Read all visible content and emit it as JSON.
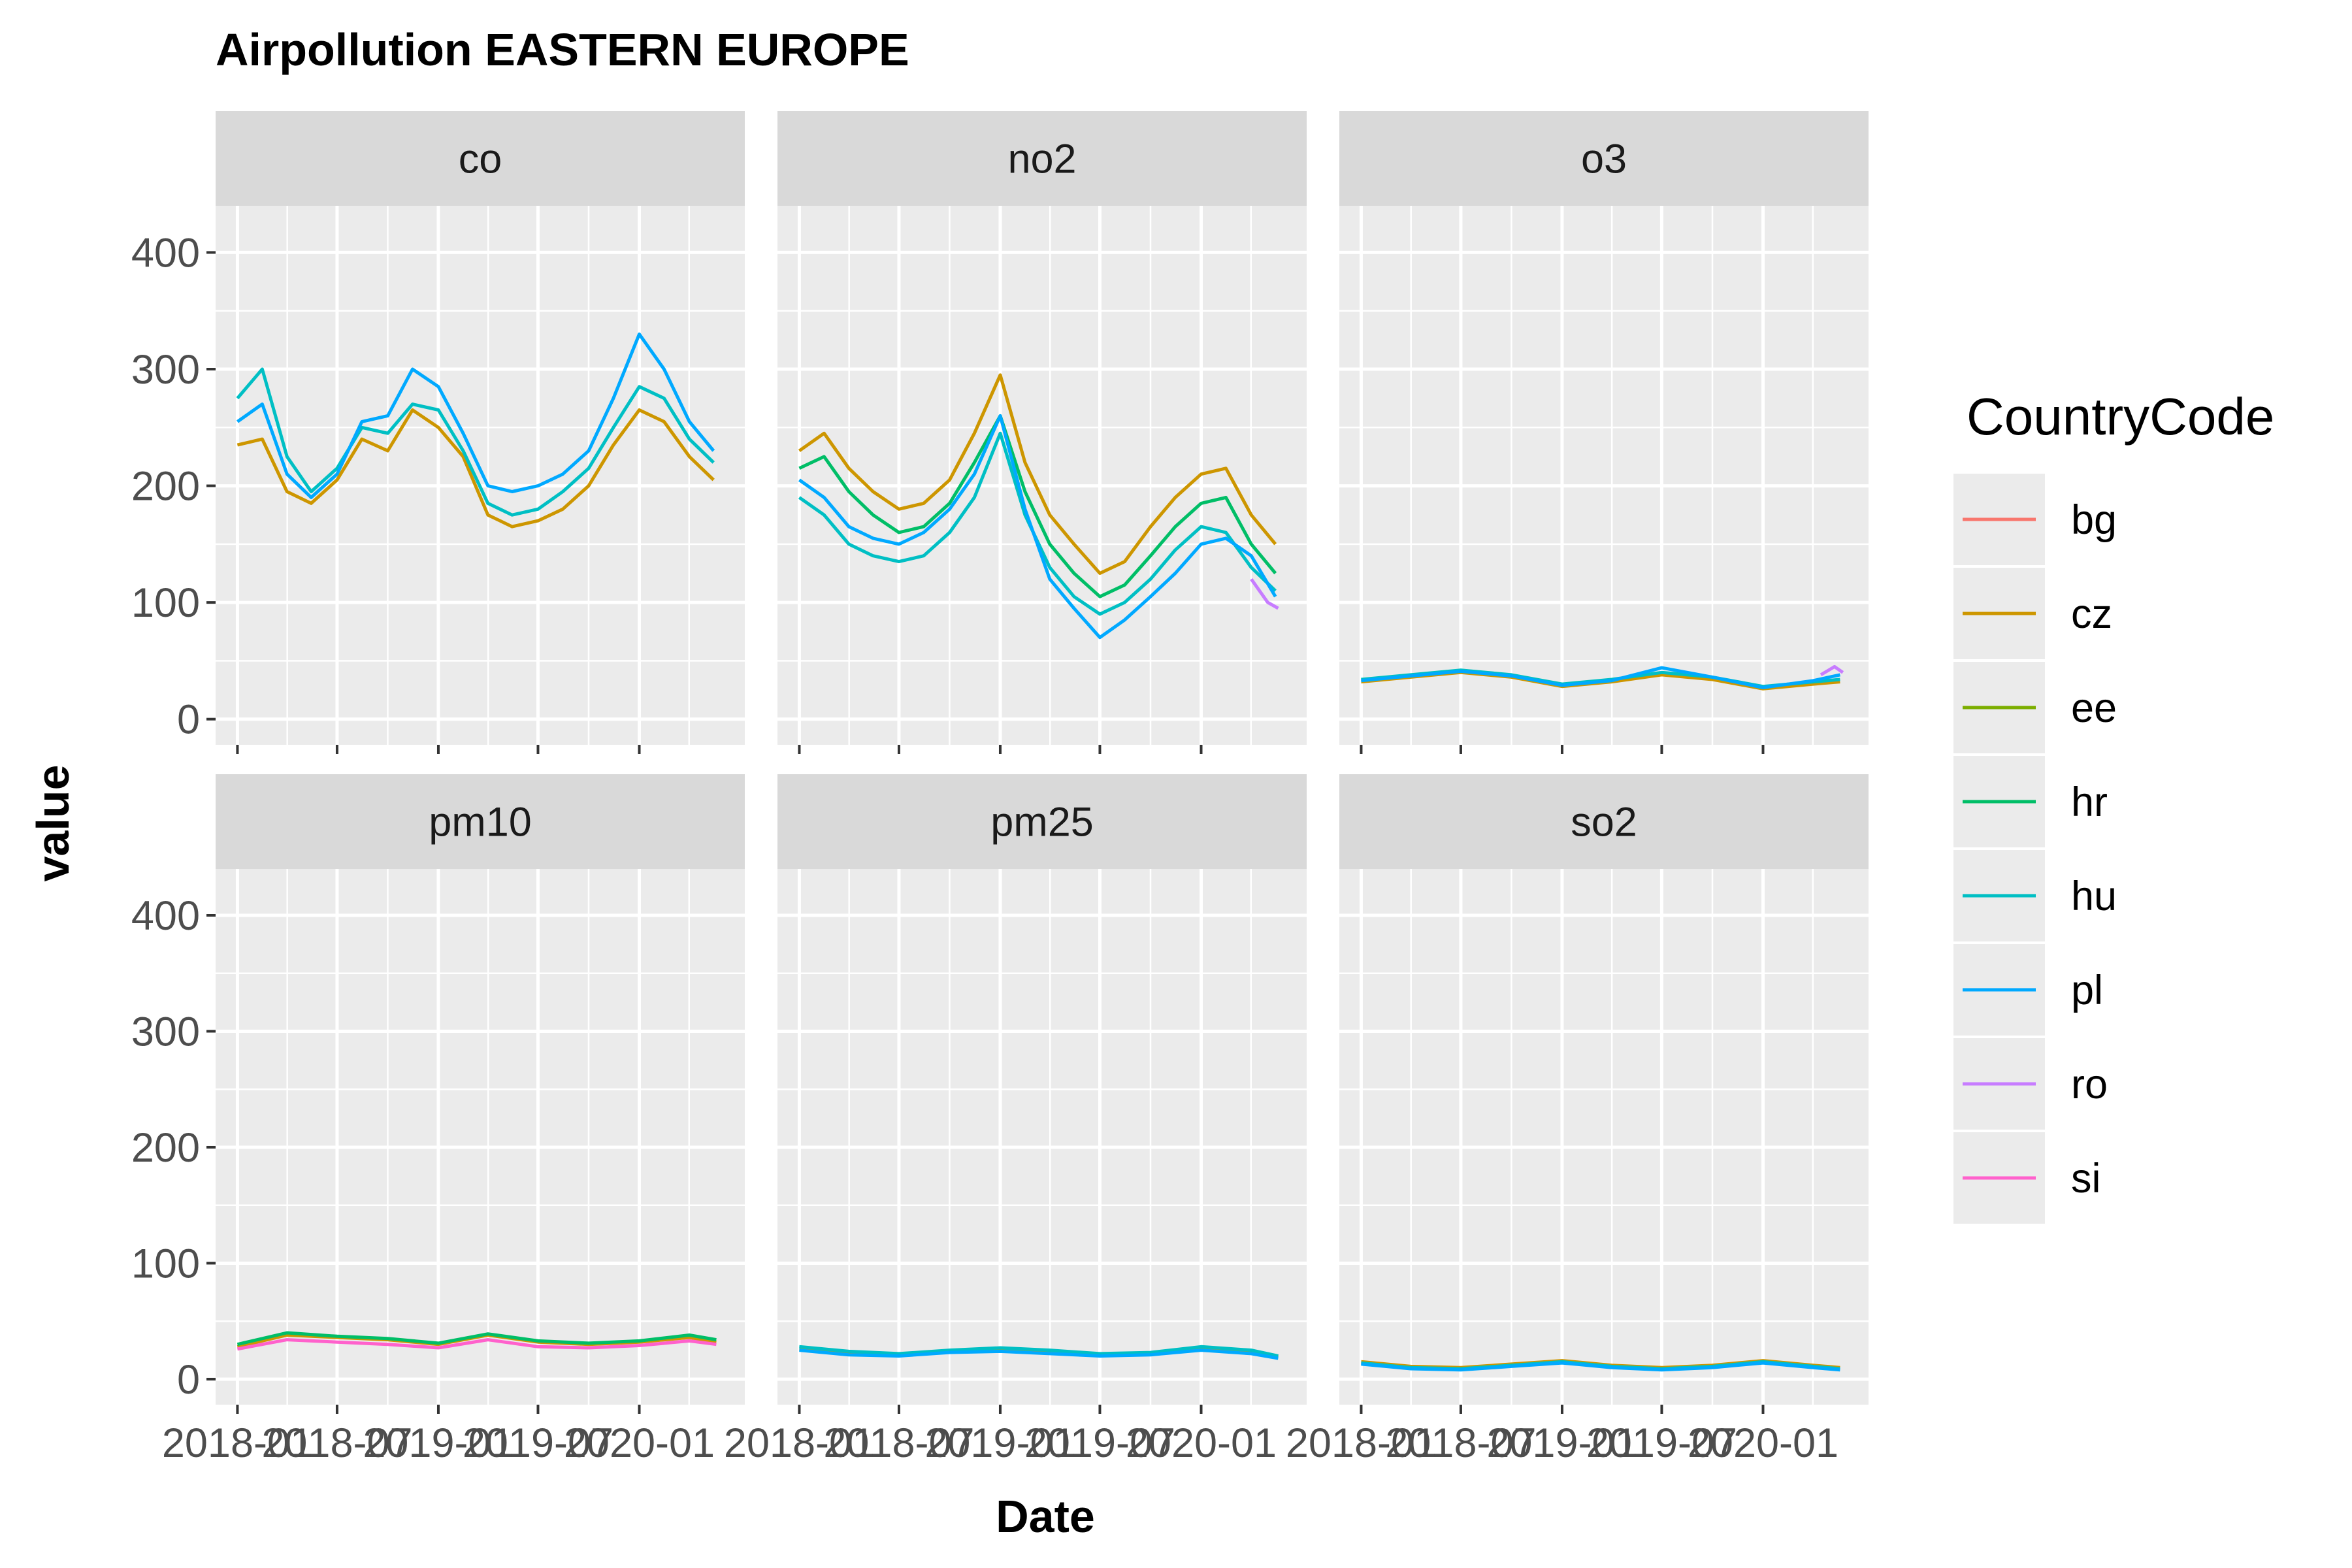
{
  "chart_data": {
    "type": "line",
    "title": "Airpollution EASTERN EUROPE",
    "xlabel": "Date",
    "ylabel": "value",
    "ylim": [
      0,
      440
    ],
    "y_ticks": [
      0,
      100,
      200,
      300,
      400
    ],
    "x_domain": [
      "2018-01-01",
      "2020-06-01"
    ],
    "x_ticks": [
      "2018-01-01",
      "2018-07-01",
      "2019-01-01",
      "2019-07-01",
      "2020-01-01"
    ],
    "x_tick_labels": [
      "2018-01",
      "2018-07",
      "2019-01",
      "2019-07",
      "2020-01"
    ],
    "grid": true,
    "facets": [
      "co",
      "no2",
      "o3",
      "pm10",
      "pm25",
      "so2"
    ],
    "legend": {
      "title": "CountryCode",
      "position": "right",
      "entries": [
        "bg",
        "cz",
        "ee",
        "hr",
        "hu",
        "pl",
        "ro",
        "si"
      ]
    },
    "colors": {
      "bg": "#F8766D",
      "cz": "#CD9600",
      "ee": "#7CAE00",
      "hr": "#00BE67",
      "hu": "#00BFC4",
      "pl": "#00A9FF",
      "ro": "#C77CFF",
      "si": "#FF61CC"
    },
    "series": [
      {
        "facet": "co",
        "name": "cz",
        "x": [
          "2018-01-01",
          "2018-02-15",
          "2018-04-01",
          "2018-05-15",
          "2018-07-01",
          "2018-08-15",
          "2018-10-01",
          "2018-11-15",
          "2019-01-01",
          "2019-02-15",
          "2019-04-01",
          "2019-05-15",
          "2019-07-01",
          "2019-08-15",
          "2019-10-01",
          "2019-11-15",
          "2020-01-01",
          "2020-02-15",
          "2020-04-01",
          "2020-05-15"
        ],
        "values": [
          235,
          240,
          195,
          185,
          205,
          240,
          230,
          265,
          250,
          225,
          175,
          165,
          170,
          180,
          200,
          235,
          265,
          255,
          225,
          205
        ]
      },
      {
        "facet": "co",
        "name": "hu",
        "x": [
          "2018-01-01",
          "2018-02-15",
          "2018-04-01",
          "2018-05-15",
          "2018-07-01",
          "2018-08-15",
          "2018-10-01",
          "2018-11-15",
          "2019-01-01",
          "2019-02-15",
          "2019-04-01",
          "2019-05-15",
          "2019-07-01",
          "2019-08-15",
          "2019-10-01",
          "2019-11-15",
          "2020-01-01",
          "2020-02-15",
          "2020-04-01",
          "2020-05-15"
        ],
        "values": [
          275,
          300,
          225,
          195,
          215,
          250,
          245,
          270,
          265,
          230,
          185,
          175,
          180,
          195,
          215,
          250,
          285,
          275,
          240,
          220
        ]
      },
      {
        "facet": "co",
        "name": "pl",
        "x": [
          "2018-01-01",
          "2018-02-15",
          "2018-04-01",
          "2018-05-15",
          "2018-07-01",
          "2018-08-15",
          "2018-10-01",
          "2018-11-15",
          "2019-01-01",
          "2019-02-15",
          "2019-04-01",
          "2019-05-15",
          "2019-07-01",
          "2019-08-15",
          "2019-10-01",
          "2019-11-15",
          "2020-01-01",
          "2020-02-15",
          "2020-04-01",
          "2020-05-15"
        ],
        "values": [
          255,
          270,
          210,
          190,
          210,
          255,
          260,
          300,
          285,
          245,
          200,
          195,
          200,
          210,
          230,
          275,
          330,
          300,
          255,
          230
        ]
      },
      {
        "facet": "no2",
        "name": "cz",
        "x": [
          "2018-01-01",
          "2018-02-15",
          "2018-04-01",
          "2018-05-15",
          "2018-07-01",
          "2018-08-15",
          "2018-10-01",
          "2018-11-15",
          "2019-01-01",
          "2019-02-15",
          "2019-04-01",
          "2019-05-15",
          "2019-07-01",
          "2019-08-15",
          "2019-10-01",
          "2019-11-15",
          "2020-01-01",
          "2020-02-15",
          "2020-04-01",
          "2020-05-15"
        ],
        "values": [
          230,
          245,
          215,
          195,
          180,
          185,
          205,
          245,
          295,
          220,
          175,
          150,
          125,
          135,
          165,
          190,
          210,
          215,
          175,
          150
        ]
      },
      {
        "facet": "no2",
        "name": "hr",
        "x": [
          "2018-01-01",
          "2018-02-15",
          "2018-04-01",
          "2018-05-15",
          "2018-07-01",
          "2018-08-15",
          "2018-10-01",
          "2018-11-15",
          "2019-01-01",
          "2019-02-15",
          "2019-04-01",
          "2019-05-15",
          "2019-07-01",
          "2019-08-15",
          "2019-10-01",
          "2019-11-15",
          "2020-01-01",
          "2020-02-15",
          "2020-04-01",
          "2020-05-15"
        ],
        "values": [
          215,
          225,
          195,
          175,
          160,
          165,
          185,
          220,
          260,
          195,
          150,
          125,
          105,
          115,
          140,
          165,
          185,
          190,
          150,
          125
        ]
      },
      {
        "facet": "no2",
        "name": "hu",
        "x": [
          "2018-01-01",
          "2018-02-15",
          "2018-04-01",
          "2018-05-15",
          "2018-07-01",
          "2018-08-15",
          "2018-10-01",
          "2018-11-15",
          "2019-01-01",
          "2019-02-15",
          "2019-04-01",
          "2019-05-15",
          "2019-07-01",
          "2019-08-15",
          "2019-10-01",
          "2019-11-15",
          "2020-01-01",
          "2020-02-15",
          "2020-04-01",
          "2020-05-15"
        ],
        "values": [
          190,
          175,
          150,
          140,
          135,
          140,
          160,
          190,
          245,
          175,
          130,
          105,
          90,
          100,
          120,
          145,
          165,
          160,
          130,
          110
        ]
      },
      {
        "facet": "no2",
        "name": "pl",
        "x": [
          "2018-01-01",
          "2018-02-15",
          "2018-04-01",
          "2018-05-15",
          "2018-07-01",
          "2018-08-15",
          "2018-10-01",
          "2018-11-15",
          "2019-01-01",
          "2019-02-15",
          "2019-04-01",
          "2019-05-15",
          "2019-07-01",
          "2019-08-15",
          "2019-10-01",
          "2019-11-15",
          "2020-01-01",
          "2020-02-15",
          "2020-04-01",
          "2020-05-15"
        ],
        "values": [
          205,
          190,
          165,
          155,
          150,
          160,
          180,
          210,
          260,
          180,
          120,
          95,
          70,
          85,
          105,
          125,
          150,
          155,
          140,
          105
        ]
      },
      {
        "facet": "no2",
        "name": "ro",
        "x": [
          "2020-04-01",
          "2020-05-01",
          "2020-05-20"
        ],
        "values": [
          120,
          100,
          95
        ]
      },
      {
        "facet": "o3",
        "name": "cz",
        "x": [
          "2018-01-01",
          "2018-04-01",
          "2018-07-01",
          "2018-10-01",
          "2019-01-01",
          "2019-04-01",
          "2019-07-01",
          "2019-10-01",
          "2020-01-01",
          "2020-04-01",
          "2020-05-20"
        ],
        "values": [
          32,
          36,
          40,
          36,
          28,
          32,
          38,
          34,
          26,
          30,
          32
        ]
      },
      {
        "facet": "o3",
        "name": "hu",
        "x": [
          "2018-01-01",
          "2018-04-01",
          "2018-07-01",
          "2018-10-01",
          "2019-01-01",
          "2019-04-01",
          "2019-07-01",
          "2019-10-01",
          "2020-01-01",
          "2020-04-01",
          "2020-05-20"
        ],
        "values": [
          34,
          38,
          42,
          38,
          30,
          34,
          40,
          36,
          28,
          32,
          34
        ]
      },
      {
        "facet": "o3",
        "name": "pl",
        "x": [
          "2018-01-01",
          "2018-04-01",
          "2018-07-01",
          "2018-10-01",
          "2019-01-01",
          "2019-04-01",
          "2019-07-01",
          "2019-10-01",
          "2020-01-01",
          "2020-04-01",
          "2020-05-20"
        ],
        "values": [
          33,
          37,
          41,
          37,
          29,
          33,
          44,
          36,
          27,
          33,
          38
        ]
      },
      {
        "facet": "o3",
        "name": "ro",
        "x": [
          "2020-04-15",
          "2020-05-10",
          "2020-05-25"
        ],
        "values": [
          38,
          45,
          40
        ]
      },
      {
        "facet": "pm10",
        "name": "cz",
        "x": [
          "2018-01-01",
          "2018-04-01",
          "2018-07-01",
          "2018-10-01",
          "2019-01-01",
          "2019-04-01",
          "2019-07-01",
          "2019-10-01",
          "2020-01-01",
          "2020-04-01",
          "2020-05-20"
        ],
        "values": [
          28,
          38,
          36,
          34,
          30,
          38,
          32,
          30,
          32,
          36,
          32
        ]
      },
      {
        "facet": "pm10",
        "name": "hr",
        "x": [
          "2018-01-01",
          "2018-04-01",
          "2018-07-01",
          "2018-10-01",
          "2019-01-01",
          "2019-04-01",
          "2019-07-01",
          "2019-10-01",
          "2020-01-01",
          "2020-04-01",
          "2020-05-20"
        ],
        "values": [
          30,
          40,
          37,
          35,
          31,
          39,
          33,
          31,
          33,
          38,
          34
        ]
      },
      {
        "facet": "pm10",
        "name": "si",
        "x": [
          "2018-01-01",
          "2018-04-01",
          "2018-07-01",
          "2018-10-01",
          "2019-01-01",
          "2019-04-01",
          "2019-07-01",
          "2019-10-01",
          "2020-01-01",
          "2020-04-01",
          "2020-05-20"
        ],
        "values": [
          26,
          34,
          32,
          30,
          27,
          34,
          28,
          27,
          29,
          33,
          30
        ]
      },
      {
        "facet": "pm25",
        "name": "cz",
        "x": [
          "2018-01-01",
          "2018-04-01",
          "2018-07-01",
          "2018-10-01",
          "2019-01-01",
          "2019-04-01",
          "2019-07-01",
          "2019-10-01",
          "2020-01-01",
          "2020-04-01",
          "2020-05-20"
        ],
        "values": [
          26,
          22,
          21,
          24,
          26,
          24,
          21,
          22,
          27,
          24,
          19
        ]
      },
      {
        "facet": "pm25",
        "name": "hu",
        "x": [
          "2018-01-01",
          "2018-04-01",
          "2018-07-01",
          "2018-10-01",
          "2019-01-01",
          "2019-04-01",
          "2019-07-01",
          "2019-10-01",
          "2020-01-01",
          "2020-04-01",
          "2020-05-20"
        ],
        "values": [
          28,
          24,
          22,
          25,
          27,
          25,
          22,
          23,
          28,
          25,
          20
        ]
      },
      {
        "facet": "pm25",
        "name": "pl",
        "x": [
          "2018-01-01",
          "2018-04-01",
          "2018-07-01",
          "2018-10-01",
          "2019-01-01",
          "2019-04-01",
          "2019-07-01",
          "2019-10-01",
          "2020-01-01",
          "2020-04-01",
          "2020-05-20"
        ],
        "values": [
          25,
          21,
          20,
          23,
          24,
          22,
          20,
          21,
          25,
          22,
          18
        ]
      },
      {
        "facet": "so2",
        "name": "cz",
        "x": [
          "2018-01-01",
          "2018-04-01",
          "2018-07-01",
          "2018-10-01",
          "2019-01-01",
          "2019-04-01",
          "2019-07-01",
          "2019-10-01",
          "2020-01-01",
          "2020-04-01",
          "2020-05-20"
        ],
        "values": [
          15,
          11,
          10,
          13,
          16,
          12,
          10,
          12,
          16,
          12,
          10
        ]
      },
      {
        "facet": "so2",
        "name": "hu",
        "x": [
          "2018-01-01",
          "2018-04-01",
          "2018-07-01",
          "2018-10-01",
          "2019-01-01",
          "2019-04-01",
          "2019-07-01",
          "2019-10-01",
          "2020-01-01",
          "2020-04-01",
          "2020-05-20"
        ],
        "values": [
          14,
          10,
          9,
          12,
          15,
          11,
          9,
          11,
          15,
          11,
          9
        ]
      },
      {
        "facet": "so2",
        "name": "pl",
        "x": [
          "2018-01-01",
          "2018-04-01",
          "2018-07-01",
          "2018-10-01",
          "2019-01-01",
          "2019-04-01",
          "2019-07-01",
          "2019-10-01",
          "2020-01-01",
          "2020-04-01",
          "2020-05-20"
        ],
        "values": [
          13,
          9,
          8,
          11,
          14,
          10,
          8,
          10,
          14,
          10,
          8
        ]
      }
    ]
  }
}
